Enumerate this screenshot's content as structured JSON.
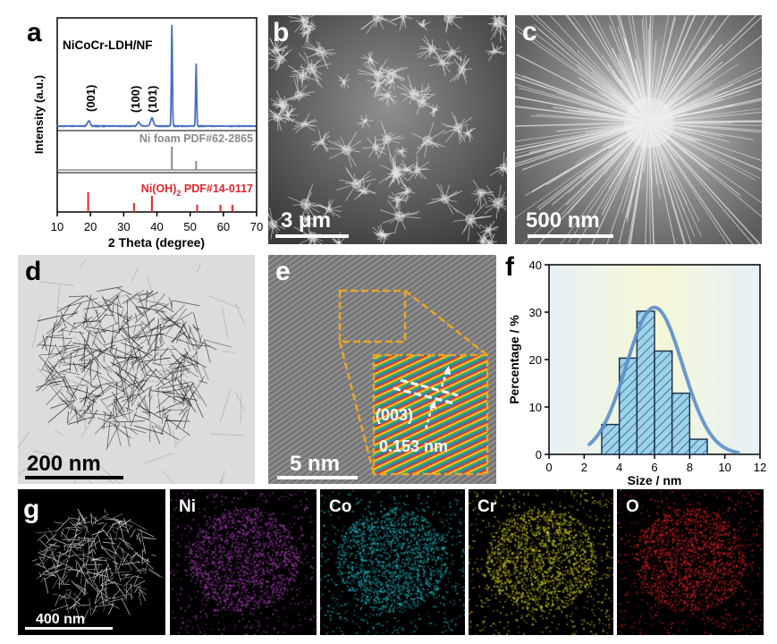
{
  "panels": {
    "a": {
      "letter": "a"
    },
    "b": {
      "letter": "b",
      "scale_label": "3 μm"
    },
    "c": {
      "letter": "c",
      "scale_label": "500 nm"
    },
    "d": {
      "letter": "d",
      "scale_label": "200 nm"
    },
    "e": {
      "letter": "e",
      "scale_label": "5 nm",
      "plane_label": "(003)",
      "spacing_label": "0.153 nm"
    },
    "f": {
      "letter": "f"
    },
    "g": {
      "letter": "g",
      "scale_label": "400 nm",
      "maps": [
        {
          "label": "Ni",
          "color": "#a23cb0"
        },
        {
          "label": "Co",
          "color": "#1fb4bf"
        },
        {
          "label": "Cr",
          "color": "#d8d221"
        },
        {
          "label": "O",
          "color": "#d01f24"
        }
      ]
    }
  },
  "chart_data": [
    {
      "type": "line",
      "panel": "a",
      "xlabel": "2 Theta (degree)",
      "ylabel": "Intensity (a.u.)",
      "xlim": [
        10,
        70
      ],
      "xticks": [
        10,
        20,
        30,
        40,
        50,
        60,
        70
      ],
      "series": [
        {
          "name": "NiCoCr-LDH/NF",
          "color": "#4a6fc2",
          "peaks": [
            {
              "x": 19.5,
              "h": 0.05,
              "label": "(001)"
            },
            {
              "x": 34.5,
              "h": 0.04,
              "label": "(100)"
            },
            {
              "x": 38.5,
              "h": 0.08,
              "label": "(101)"
            },
            {
              "x": 44.5,
              "h": 1.0
            },
            {
              "x": 51.8,
              "h": 0.62
            }
          ]
        },
        {
          "name": "Ni foam PDF#62-2865",
          "color": "#8a8a8a",
          "sticks": [
            44.5,
            51.8
          ]
        },
        {
          "name": "Ni(OH)",
          "subscript": "2",
          "suffix": " PDF#14-0117",
          "color": "#e0262b",
          "sticks": [
            19.3,
            33.1,
            38.5,
            52.1,
            59.1,
            62.7
          ]
        }
      ]
    },
    {
      "type": "bar",
      "panel": "f",
      "xlabel": "Size / nm",
      "ylabel": "Percentage / %",
      "xlim": [
        0,
        12
      ],
      "ylim": [
        0,
        40
      ],
      "xticks": [
        0,
        2,
        4,
        6,
        8,
        10,
        12
      ],
      "yticks": [
        0,
        10,
        20,
        30,
        40
      ],
      "bin_width": 1,
      "bins": [
        {
          "center": 3.5,
          "value": 6.3
        },
        {
          "center": 4.5,
          "value": 20.3
        },
        {
          "center": 5.5,
          "value": 30.2
        },
        {
          "center": 6.5,
          "value": 21.8
        },
        {
          "center": 7.5,
          "value": 12.9
        },
        {
          "center": 8.5,
          "value": 3.2
        }
      ],
      "fit": {
        "type": "gaussian",
        "mean": 6.0,
        "sigma": 1.6,
        "peak": 31,
        "range": [
          2.3,
          10.8
        ]
      }
    }
  ]
}
